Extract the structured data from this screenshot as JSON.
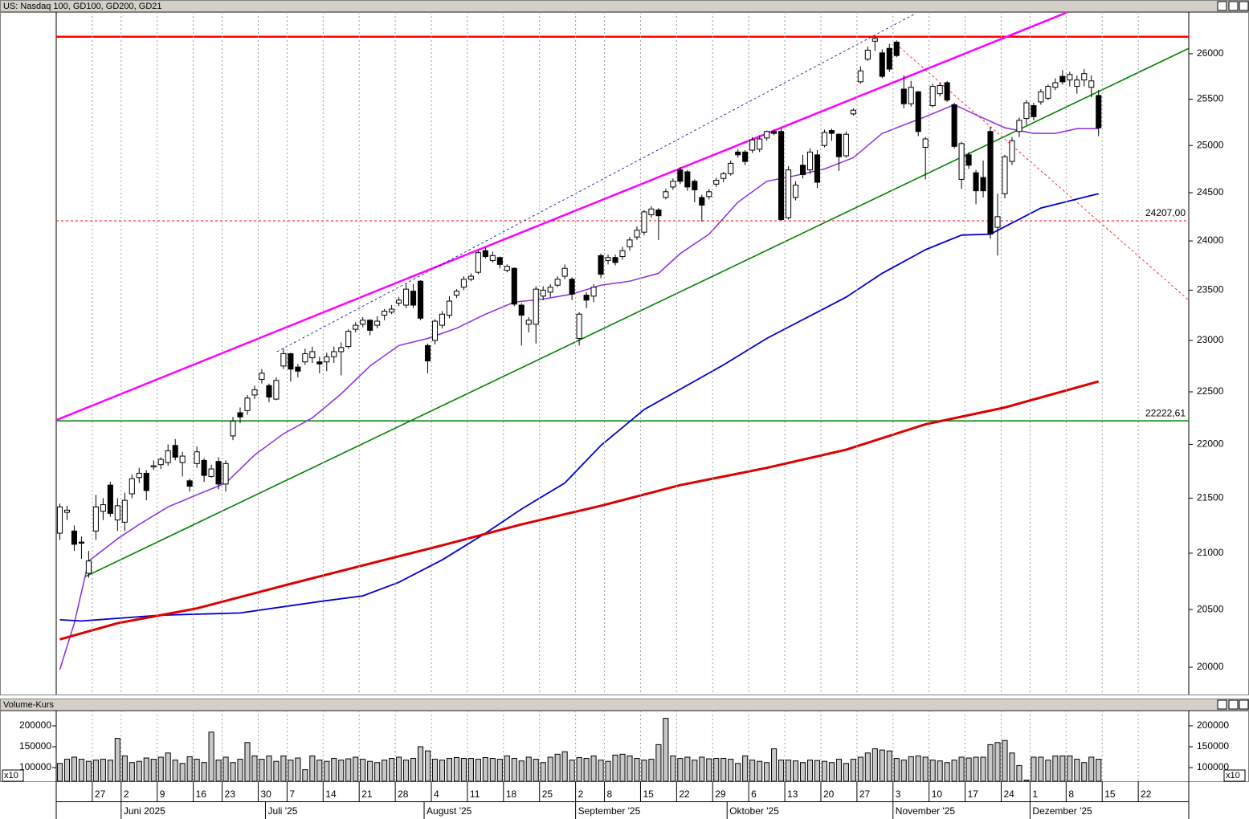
{
  "chart_data": [
    {
      "type": "candlestick",
      "title": "US: Nasdaq 100, GD100, GD200, GD21",
      "log": true,
      "xlim": [
        -0.5,
        156.5
      ],
      "ylim": [
        19768,
        26468
      ],
      "yticks": [
        20000,
        20500,
        21000,
        21500,
        22000,
        22500,
        23000,
        23500,
        24000,
        24500,
        25000,
        25500,
        26000
      ],
      "open": [
        21180,
        21370,
        21200,
        21100,
        20820,
        21200,
        21380,
        21620,
        21300,
        21280,
        21540,
        21690,
        21730,
        21790,
        21810,
        21830,
        21990,
        21830,
        21660,
        21820,
        21850,
        21700,
        21840,
        21630,
        22080,
        22300,
        22320,
        22470,
        22620,
        22560,
        22430,
        22750,
        22870,
        22740,
        22790,
        22830,
        22790,
        22790,
        22840,
        22890,
        22940,
        23110,
        23160,
        23200,
        23150,
        23250,
        23280,
        23370,
        23350,
        23490,
        23590,
        22950,
        23000,
        23150,
        23250,
        23450,
        23530,
        23610,
        23680,
        23900,
        23800,
        23830,
        23700,
        23720,
        23350,
        23160,
        23160,
        23440,
        23480,
        23550,
        23640,
        23610,
        23020,
        23450,
        23440,
        23850,
        23800,
        23830,
        23840,
        23940,
        24040,
        24090,
        24270,
        24320,
        24450,
        24560,
        24740,
        24720,
        24620,
        24450,
        24460,
        24590,
        24650,
        24700,
        24930,
        24930,
        24950,
        24960,
        25080,
        25150,
        25150,
        24240,
        24450,
        24790,
        24740,
        24900,
        25000,
        25160,
        25120,
        24890,
        25340,
        25690,
        25940,
        26140,
        26010,
        26060,
        26130,
        25610,
        25450,
        25580,
        24980,
        25430,
        25560,
        25680,
        25440,
        24640,
        24900,
        24710,
        24660,
        25150,
        24140,
        24490,
        24830,
        25150,
        25290,
        25430,
        25470,
        25510,
        25630,
        25750,
        25710,
        25640,
        25710,
        25630,
        25540
      ],
      "high": [
        21450,
        21430,
        21250,
        21150,
        21020,
        21530,
        21500,
        21650,
        21500,
        21550,
        21720,
        21780,
        21760,
        21850,
        21880,
        22000,
        22050,
        21930,
        21680,
        21980,
        21870,
        21810,
        21880,
        21850,
        22260,
        22350,
        22470,
        22560,
        22720,
        22580,
        22640,
        22920,
        22880,
        22770,
        22920,
        22940,
        22840,
        22880,
        22940,
        22980,
        23110,
        23180,
        23230,
        23210,
        23240,
        23310,
        23350,
        23430,
        23560,
        23560,
        23600,
        22970,
        23210,
        23290,
        23440,
        23510,
        23640,
        23670,
        23900,
        23930,
        23890,
        23840,
        23760,
        23730,
        23370,
        23230,
        23540,
        23540,
        23560,
        23640,
        23760,
        23630,
        23280,
        23480,
        23560,
        23870,
        23860,
        23860,
        23940,
        24040,
        24150,
        24320,
        24360,
        24340,
        24540,
        24650,
        24770,
        24740,
        24640,
        24480,
        24540,
        24660,
        24720,
        24840,
        24960,
        24950,
        25090,
        25110,
        25160,
        25170,
        25180,
        24780,
        24620,
        24900,
        24970,
        24950,
        25170,
        25180,
        25130,
        25150,
        25400,
        25860,
        26080,
        26190,
        26050,
        26110,
        26150,
        25760,
        25700,
        25590,
        25090,
        25670,
        25680,
        25700,
        25460,
        25040,
        24930,
        24740,
        24840,
        25200,
        24490,
        24900,
        25090,
        25300,
        25490,
        25460,
        25610,
        25660,
        25730,
        25820,
        25800,
        25760,
        25830,
        25760,
        25600
      ],
      "low": [
        21120,
        21300,
        21020,
        20950,
        20780,
        21120,
        21300,
        21330,
        21200,
        21200,
        21500,
        21640,
        21480,
        21760,
        21770,
        21800,
        21850,
        21700,
        21560,
        21780,
        21650,
        21690,
        21580,
        21560,
        22040,
        22200,
        22280,
        22430,
        22580,
        22400,
        22420,
        22720,
        22600,
        22640,
        22760,
        22780,
        22680,
        22700,
        22780,
        22660,
        22920,
        23080,
        23130,
        23050,
        23120,
        23200,
        23260,
        23340,
        23320,
        23320,
        23200,
        22680,
        22960,
        23120,
        23220,
        23420,
        23500,
        23590,
        23660,
        23820,
        23780,
        23720,
        23680,
        23340,
        22950,
        23080,
        22970,
        23400,
        23430,
        23530,
        23610,
        23400,
        22950,
        23320,
        23380,
        23620,
        23760,
        23750,
        23810,
        23900,
        24010,
        24060,
        24240,
        24010,
        24430,
        24530,
        24590,
        24520,
        24400,
        24200,
        24430,
        24560,
        24610,
        24680,
        24870,
        24790,
        24920,
        24930,
        25050,
        25110,
        24210,
        24220,
        24420,
        24650,
        24700,
        24550,
        24980,
        25050,
        24730,
        24870,
        25320,
        25670,
        25920,
        26030,
        25730,
        25800,
        25960,
        25400,
        25420,
        25100,
        24640,
        25410,
        25530,
        25470,
        24970,
        24540,
        24750,
        24380,
        24450,
        24020,
        23850,
        24440,
        24790,
        25090,
        25220,
        25270,
        25440,
        25490,
        25600,
        25660,
        25640,
        25560,
        25640,
        25520,
        25100
      ],
      "close": [
        21420,
        21390,
        21080,
        21090,
        20930,
        21420,
        21440,
        21360,
        21430,
        21480,
        21680,
        21730,
        21570,
        21800,
        21860,
        21940,
        21880,
        21890,
        21610,
        21930,
        21710,
        21770,
        21630,
        21820,
        22220,
        22260,
        22440,
        22520,
        22680,
        22450,
        22610,
        22870,
        22720,
        22700,
        22870,
        22890,
        22770,
        22840,
        22890,
        22930,
        23090,
        23150,
        23200,
        23100,
        23190,
        23290,
        23310,
        23400,
        23510,
        23350,
        23220,
        22800,
        23190,
        23260,
        23390,
        23490,
        23610,
        23640,
        23880,
        23840,
        23850,
        23760,
        23740,
        23360,
        23250,
        23200,
        23510,
        23500,
        23530,
        23610,
        23720,
        23460,
        23260,
        23400,
        23530,
        23660,
        23830,
        23780,
        23900,
        24010,
        24110,
        24300,
        24330,
        24260,
        24510,
        24620,
        24620,
        24560,
        24530,
        24370,
        24510,
        24630,
        24700,
        24810,
        24900,
        24830,
        25060,
        25070,
        25150,
        25130,
        24220,
        24740,
        24580,
        24690,
        24930,
        24610,
        25140,
        25130,
        24880,
        25120,
        25380,
        25810,
        26040,
        26170,
        25750,
        25830,
        25980,
        25450,
        25630,
        25150,
        25070,
        25640,
        25650,
        25490,
        24990,
        25020,
        24790,
        24520,
        24520,
        24070,
        24250,
        24880,
        25050,
        25270,
        25460,
        25310,
        25580,
        25640,
        25680,
        25690,
        25770,
        25710,
        25780,
        25700,
        25190
      ],
      "series": [
        {
          "color": "#8a2be2",
          "width": 1.5,
          "x": [
            0,
            2,
            4,
            8,
            11,
            15,
            19,
            23,
            27,
            31,
            35,
            39,
            43,
            47,
            51,
            55,
            59,
            63,
            67,
            71,
            75,
            79,
            83,
            86,
            90,
            94,
            98,
            102,
            106,
            110,
            114,
            117,
            120,
            124,
            127,
            131,
            135,
            138,
            141,
            144
          ],
          "values": [
            19980,
            20380,
            20930,
            21130,
            21260,
            21420,
            21530,
            21640,
            21900,
            22100,
            22250,
            22480,
            22750,
            22950,
            23020,
            23120,
            23260,
            23380,
            23410,
            23460,
            23550,
            23590,
            23670,
            23870,
            24070,
            24400,
            24620,
            24680,
            24750,
            24870,
            25130,
            25220,
            25310,
            25440,
            25330,
            25190,
            25130,
            25130,
            25180,
            25180
          ]
        },
        {
          "color": "#0000cc",
          "width": 1.8,
          "x": [
            0,
            3,
            14,
            25,
            36,
            42,
            47,
            53,
            59,
            64,
            70,
            75,
            81,
            92,
            98,
            109,
            114,
            120,
            125,
            129,
            136,
            144
          ],
          "values": [
            20410,
            20400,
            20450,
            20470,
            20570,
            20620,
            20740,
            20940,
            21180,
            21400,
            21640,
            21990,
            22330,
            22760,
            23020,
            23430,
            23670,
            23910,
            24060,
            24070,
            24340,
            24490
          ]
        },
        {
          "color": "#dd0000",
          "width": 3,
          "x": [
            0,
            8,
            19,
            31,
            42,
            53,
            64,
            75,
            86,
            98,
            109,
            120,
            131,
            144
          ],
          "values": [
            20240,
            20380,
            20510,
            20710,
            20890,
            21070,
            21260,
            21430,
            21620,
            21780,
            21950,
            22190,
            22350,
            22600
          ]
        }
      ],
      "lines": [
        {
          "x": [
            -0.5,
            139.8
          ],
          "values": [
            22230,
            26470
          ],
          "color": "#ff00ff",
          "width": 2.5,
          "dash": false
        },
        {
          "x": [
            3.5,
            156.5
          ],
          "values": [
            20790,
            26060
          ],
          "color": "#008000",
          "width": 1.6,
          "dash": false
        },
        {
          "x": [
            30.1,
            118.6
          ],
          "values": [
            22890,
            26450
          ],
          "color": "#00008b",
          "width": 0.8,
          "dash": true
        },
        {
          "x": [
            115.9,
            156.5
          ],
          "values": [
            26110,
            23400
          ],
          "color": "#ff0000",
          "width": 0.8,
          "dash": true
        }
      ],
      "hlines": [
        {
          "value": 26190,
          "color": "#ff0000",
          "width": 2.5,
          "dash": false
        },
        {
          "value": 24207,
          "label": "24207,00",
          "color": "#ff0000",
          "width": 1,
          "dash": true
        },
        {
          "value": 22222.61,
          "label": "22222,61",
          "color": "#008000",
          "width": 1.6,
          "dash": false
        }
      ]
    },
    {
      "type": "bar",
      "title": "Volume-Kurs",
      "unit_label": "x10",
      "color": "#c8c8c8",
      "xlim": [
        -0.5,
        156.5
      ],
      "ylim": [
        67300,
        236500
      ],
      "yticks": [
        100000,
        150000,
        200000
      ],
      "values": [
        110000,
        120000,
        125000,
        120000,
        115000,
        118000,
        120000,
        118000,
        170000,
        128000,
        112000,
        115000,
        123000,
        120000,
        125000,
        135000,
        118000,
        110000,
        126000,
        120000,
        112000,
        185000,
        118000,
        125000,
        112000,
        120000,
        160000,
        128000,
        120000,
        128000,
        115000,
        128000,
        118000,
        123000,
        95000,
        128000,
        118000,
        115000,
        122000,
        118000,
        121000,
        125000,
        120000,
        115000,
        112000,
        118000,
        122000,
        125000,
        118000,
        122000,
        150000,
        140000,
        120000,
        118000,
        122000,
        124000,
        122000,
        122000,
        120000,
        124000,
        122000,
        120000,
        128000,
        122000,
        116000,
        125000,
        120000,
        112000,
        125000,
        132000,
        138000,
        118000,
        124000,
        122000,
        128000,
        118000,
        115000,
        130000,
        132000,
        128000,
        122000,
        118000,
        120000,
        155000,
        218000,
        128000,
        122000,
        125000,
        118000,
        125000,
        121000,
        122000,
        122000,
        120000,
        110000,
        128000,
        118000,
        115000,
        112000,
        145000,
        118000,
        118000,
        116000,
        112000,
        118000,
        117000,
        115000,
        112000,
        120000,
        110000,
        120000,
        125000,
        135000,
        145000,
        142000,
        140000,
        122000,
        118000,
        126000,
        128000,
        125000,
        118000,
        116000,
        112000,
        118000,
        125000,
        123000,
        125000,
        125000,
        155000,
        160000,
        165000,
        135000,
        105000,
        70000,
        125000,
        125000,
        118000,
        128000,
        128000,
        128000,
        120000,
        112000,
        125000,
        120000
      ],
      "xticks": [
        {
          "value": 5,
          "label": "27"
        },
        {
          "value": 9,
          "label": "2"
        },
        {
          "value": 14,
          "label": "9"
        },
        {
          "value": 19,
          "label": "16"
        },
        {
          "value": 23,
          "label": "23"
        },
        {
          "value": 28,
          "label": "30"
        },
        {
          "value": 32,
          "label": "7"
        },
        {
          "value": 37,
          "label": "14"
        },
        {
          "value": 42,
          "label": "21"
        },
        {
          "value": 47,
          "label": "28"
        },
        {
          "value": 52,
          "label": "4"
        },
        {
          "value": 57,
          "label": "11"
        },
        {
          "value": 62,
          "label": "18"
        },
        {
          "value": 67,
          "label": "25"
        },
        {
          "value": 72,
          "label": "2"
        },
        {
          "value": 76,
          "label": "8"
        },
        {
          "value": 81,
          "label": "15"
        },
        {
          "value": 86,
          "label": "22"
        },
        {
          "value": 91,
          "label": "29"
        },
        {
          "value": 96,
          "label": "6"
        },
        {
          "value": 101,
          "label": "13"
        },
        {
          "value": 106,
          "label": "20"
        },
        {
          "value": 111,
          "label": "27"
        },
        {
          "value": 116,
          "label": "3"
        },
        {
          "value": 121,
          "label": "10"
        },
        {
          "value": 126,
          "label": "17"
        },
        {
          "value": 131,
          "label": "24"
        },
        {
          "value": 135,
          "label": "1"
        },
        {
          "value": 140,
          "label": "8"
        },
        {
          "value": 145,
          "label": "15"
        },
        {
          "value": 150,
          "label": "22"
        }
      ],
      "month_ticks": [
        {
          "value": 9,
          "label": "Juni 2025"
        },
        {
          "value": 29,
          "label": "Juli '25"
        },
        {
          "value": 51,
          "label": "August '25"
        },
        {
          "value": 72,
          "label": "September '25"
        },
        {
          "value": 93,
          "label": "Oktober '25"
        },
        {
          "value": 116,
          "label": "November '25"
        },
        {
          "value": 135,
          "label": "Dezember '25"
        }
      ]
    }
  ]
}
